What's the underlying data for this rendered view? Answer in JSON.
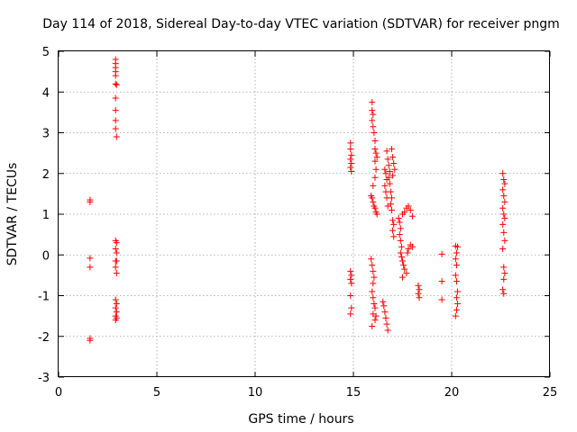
{
  "chart_data": {
    "type": "scatter",
    "title": "Day 114 of 2018, Sidereal Day-to-day VTEC variation (SDTVAR) for receiver pngm",
    "xlabel": "GPS time / hours",
    "ylabel": "SDTVAR / TECUs",
    "xlim": [
      0,
      25
    ],
    "ylim": [
      -3,
      5
    ],
    "xticks": [
      0,
      5,
      10,
      15,
      20,
      25
    ],
    "yticks": [
      -3,
      -2,
      -1,
      0,
      1,
      2,
      3,
      4,
      5
    ],
    "grid": true,
    "marker": "+",
    "color": "#ff0000",
    "series": [
      {
        "name": "SDTVAR",
        "points": [
          [
            1.6,
            1.35
          ],
          [
            1.6,
            1.3
          ],
          [
            1.6,
            -0.08
          ],
          [
            1.6,
            -0.3
          ],
          [
            1.6,
            -2.05
          ],
          [
            1.6,
            -2.1
          ],
          [
            2.9,
            4.8
          ],
          [
            2.9,
            4.7
          ],
          [
            2.9,
            4.6
          ],
          [
            2.9,
            4.5
          ],
          [
            2.9,
            4.4
          ],
          [
            2.9,
            4.2
          ],
          [
            2.95,
            4.18
          ],
          [
            2.9,
            3.85
          ],
          [
            2.9,
            3.55
          ],
          [
            2.9,
            3.3
          ],
          [
            2.9,
            3.1
          ],
          [
            2.95,
            2.9
          ],
          [
            2.9,
            0.35
          ],
          [
            2.95,
            0.3
          ],
          [
            2.9,
            0.15
          ],
          [
            2.95,
            0.05
          ],
          [
            2.9,
            -0.15
          ],
          [
            2.95,
            -0.15
          ],
          [
            2.9,
            -0.3
          ],
          [
            2.95,
            -0.45
          ],
          [
            2.9,
            -1.1
          ],
          [
            2.95,
            -1.2
          ],
          [
            2.9,
            -1.3
          ],
          [
            2.95,
            -1.4
          ],
          [
            2.9,
            -1.5
          ],
          [
            2.95,
            -1.55
          ],
          [
            2.9,
            -1.6
          ],
          [
            14.85,
            2.75
          ],
          [
            14.85,
            2.6
          ],
          [
            14.9,
            2.45
          ],
          [
            14.85,
            2.35
          ],
          [
            14.9,
            2.25
          ],
          [
            14.85,
            2.15
          ],
          [
            14.9,
            2.05
          ],
          [
            14.85,
            -0.4
          ],
          [
            14.9,
            -0.5
          ],
          [
            14.85,
            -0.6
          ],
          [
            14.9,
            -0.7
          ],
          [
            14.85,
            -1.0
          ],
          [
            14.9,
            -1.3
          ],
          [
            14.85,
            -1.45
          ],
          [
            15.95,
            3.75
          ],
          [
            15.95,
            3.55
          ],
          [
            16.0,
            3.45
          ],
          [
            15.95,
            3.3
          ],
          [
            16.0,
            3.15
          ],
          [
            16.05,
            3.0
          ],
          [
            16.1,
            2.8
          ],
          [
            16.1,
            2.6
          ],
          [
            16.15,
            2.5
          ],
          [
            16.2,
            2.4
          ],
          [
            16.1,
            2.3
          ],
          [
            16.15,
            2.1
          ],
          [
            16.1,
            1.9
          ],
          [
            16.0,
            1.7
          ],
          [
            15.9,
            1.45
          ],
          [
            15.95,
            1.4
          ],
          [
            16.0,
            1.3
          ],
          [
            16.05,
            1.2
          ],
          [
            16.1,
            1.15
          ],
          [
            16.15,
            1.05
          ],
          [
            16.2,
            1.0
          ],
          [
            15.9,
            -0.1
          ],
          [
            15.95,
            -0.25
          ],
          [
            16.0,
            -0.4
          ],
          [
            16.05,
            -0.55
          ],
          [
            16.0,
            -0.7
          ],
          [
            15.95,
            -0.9
          ],
          [
            16.0,
            -1.05
          ],
          [
            16.05,
            -1.2
          ],
          [
            16.1,
            -1.3
          ],
          [
            16.0,
            -1.45
          ],
          [
            16.15,
            -1.5
          ],
          [
            16.1,
            -1.6
          ],
          [
            15.95,
            -1.75
          ],
          [
            16.6,
            2.1
          ],
          [
            16.65,
            2.0
          ],
          [
            16.7,
            1.85
          ],
          [
            16.6,
            1.7
          ],
          [
            16.65,
            1.55
          ],
          [
            16.7,
            1.4
          ],
          [
            16.75,
            1.2
          ],
          [
            16.7,
            2.55
          ],
          [
            16.75,
            2.35
          ],
          [
            16.8,
            2.2
          ],
          [
            16.85,
            2.05
          ],
          [
            16.8,
            1.9
          ],
          [
            16.85,
            1.75
          ],
          [
            16.9,
            1.55
          ],
          [
            16.95,
            1.4
          ],
          [
            16.9,
            1.25
          ],
          [
            16.95,
            1.1
          ],
          [
            17.0,
            0.85
          ],
          [
            17.05,
            0.75
          ],
          [
            17.0,
            0.6
          ],
          [
            17.05,
            0.45
          ],
          [
            16.95,
            2.6
          ],
          [
            17.0,
            2.4
          ],
          [
            17.05,
            2.25
          ],
          [
            17.1,
            2.1
          ],
          [
            17.0,
            1.95
          ],
          [
            16.5,
            -1.15
          ],
          [
            16.55,
            -1.25
          ],
          [
            16.6,
            -1.4
          ],
          [
            16.65,
            -1.55
          ],
          [
            16.7,
            -1.7
          ],
          [
            16.75,
            -1.85
          ],
          [
            17.3,
            0.9
          ],
          [
            17.35,
            0.8
          ],
          [
            17.4,
            0.65
          ],
          [
            17.35,
            0.5
          ],
          [
            17.4,
            0.35
          ],
          [
            17.45,
            0.2
          ],
          [
            17.4,
            0.05
          ],
          [
            17.45,
            -0.05
          ],
          [
            17.5,
            -0.15
          ],
          [
            17.55,
            -0.25
          ],
          [
            17.6,
            -0.35
          ],
          [
            17.7,
            -0.45
          ],
          [
            17.5,
            -0.55
          ],
          [
            17.5,
            1.0
          ],
          [
            17.6,
            1.05
          ],
          [
            17.7,
            1.15
          ],
          [
            17.8,
            1.2
          ],
          [
            17.9,
            1.1
          ],
          [
            18.0,
            0.95
          ],
          [
            17.75,
            0.05
          ],
          [
            17.8,
            0.15
          ],
          [
            17.9,
            0.25
          ],
          [
            18.0,
            0.2
          ],
          [
            18.3,
            -0.75
          ],
          [
            18.35,
            -0.85
          ],
          [
            18.3,
            -0.95
          ],
          [
            18.35,
            -1.05
          ],
          [
            19.5,
            0.02
          ],
          [
            19.5,
            -0.65
          ],
          [
            19.5,
            -1.1
          ],
          [
            20.2,
            0.22
          ],
          [
            20.3,
            0.2
          ],
          [
            20.25,
            0.05
          ],
          [
            20.2,
            -0.1
          ],
          [
            20.25,
            -0.25
          ],
          [
            20.2,
            -0.5
          ],
          [
            20.25,
            -0.65
          ],
          [
            20.3,
            -0.9
          ],
          [
            20.25,
            -1.05
          ],
          [
            20.3,
            -1.2
          ],
          [
            20.25,
            -1.35
          ],
          [
            20.2,
            -1.5
          ],
          [
            22.6,
            2.0
          ],
          [
            22.65,
            1.85
          ],
          [
            22.7,
            1.75
          ],
          [
            22.6,
            1.6
          ],
          [
            22.65,
            1.45
          ],
          [
            22.7,
            1.3
          ],
          [
            22.6,
            1.15
          ],
          [
            22.65,
            1.0
          ],
          [
            22.7,
            0.9
          ],
          [
            22.6,
            0.75
          ],
          [
            22.65,
            0.55
          ],
          [
            22.7,
            0.35
          ],
          [
            22.6,
            0.15
          ],
          [
            22.65,
            -0.3
          ],
          [
            22.7,
            -0.45
          ],
          [
            22.65,
            -0.6
          ],
          [
            22.6,
            -0.85
          ],
          [
            22.65,
            -0.95
          ]
        ]
      }
    ]
  }
}
